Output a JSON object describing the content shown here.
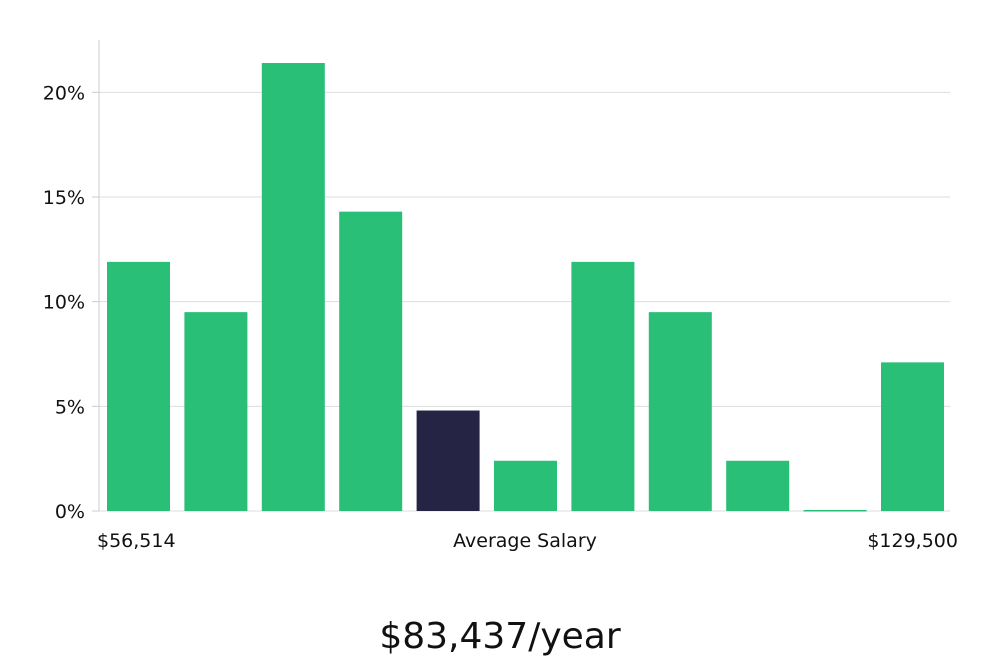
{
  "chart_data": {
    "type": "bar",
    "categories": [
      "",
      "",
      "",
      "",
      "",
      "",
      "",
      "",
      "",
      "",
      ""
    ],
    "values": [
      11.9,
      9.5,
      21.4,
      14.3,
      4.8,
      2.4,
      11.9,
      9.5,
      2.4,
      0,
      7.1
    ],
    "highlight_index": 4,
    "ylim": [
      0,
      22.5
    ],
    "y_ticks": [
      0,
      5,
      10,
      15,
      20
    ],
    "y_tick_labels": [
      "0%",
      "5%",
      "10%",
      "15%",
      "20%"
    ],
    "grid": true,
    "x_axis_labels": {
      "left": "$56,514",
      "center": "Average Salary",
      "right": "$129,500"
    },
    "colors": {
      "bar": "#29bf77",
      "highlight": "#262444",
      "grid": "#dddddd",
      "axis": "#cccccc"
    }
  },
  "footer": {
    "value": "$83,437/year"
  }
}
